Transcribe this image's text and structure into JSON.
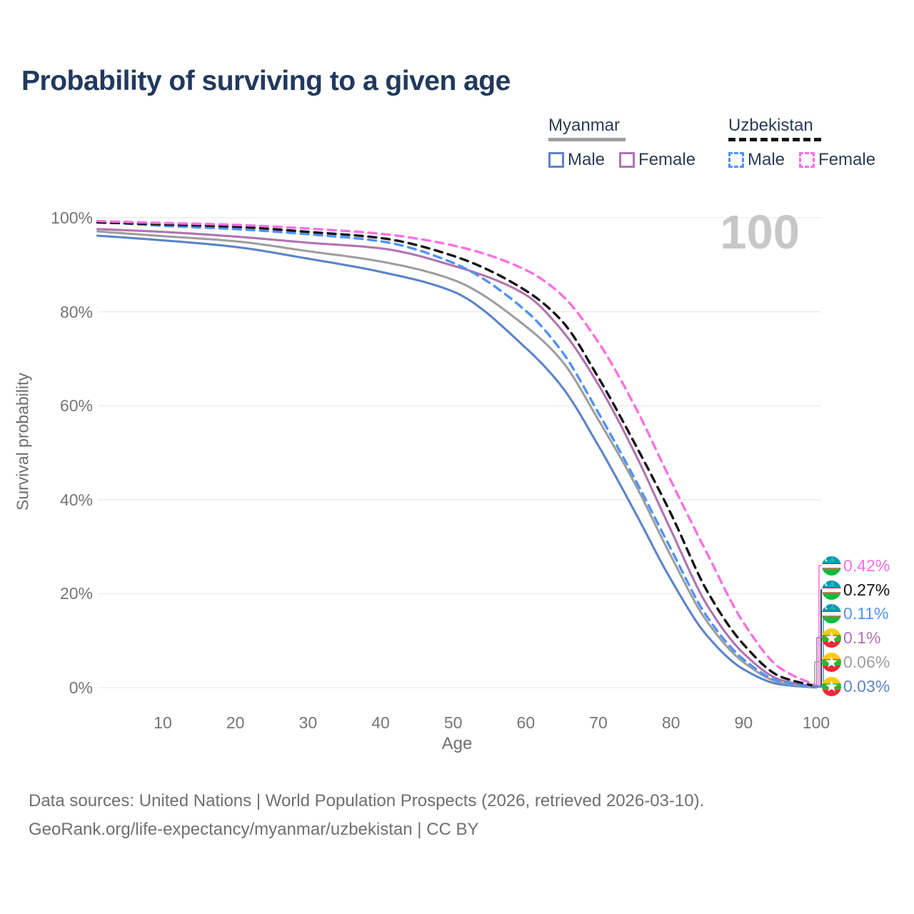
{
  "title": "Probability of surviving to a given age",
  "watermark": "100",
  "legend": {
    "groups": [
      {
        "title": "Myanmar",
        "style": "solid",
        "items": [
          {
            "label": "Male"
          },
          {
            "label": "Female"
          }
        ]
      },
      {
        "title": "Uzbekistan",
        "style": "dashed",
        "items": [
          {
            "label": "Male"
          },
          {
            "label": "Female"
          }
        ]
      }
    ]
  },
  "axes": {
    "y_title": "Survival probability",
    "x_title": "Age",
    "y_ticks": [
      "100%",
      "80%",
      "60%",
      "40%",
      "20%",
      "0%"
    ],
    "y_tick_values": [
      100,
      80,
      60,
      40,
      20,
      0
    ],
    "x_ticks": [
      "10",
      "20",
      "30",
      "40",
      "50",
      "60",
      "70",
      "80",
      "90",
      "100"
    ],
    "x_tick_values": [
      10,
      20,
      30,
      40,
      50,
      60,
      70,
      80,
      90,
      100
    ]
  },
  "end_labels": [
    {
      "value": "0.42%",
      "color": "#fb6fe4",
      "flag": "uzbekistan",
      "series": "Uzbekistan Female"
    },
    {
      "value": "0.27%",
      "color": "#141414",
      "flag": "uzbekistan",
      "series": "Uzbekistan"
    },
    {
      "value": "0.11%",
      "color": "#4f93f7",
      "flag": "uzbekistan",
      "series": "Uzbekistan Male"
    },
    {
      "value": "0.1%",
      "color": "#b173b1",
      "flag": "myanmar",
      "series": "Myanmar Female"
    },
    {
      "value": "0.06%",
      "color": "#9e9e9e",
      "flag": "myanmar",
      "series": "Myanmar"
    },
    {
      "value": "0.03%",
      "color": "#5b84c9",
      "flag": "myanmar",
      "series": "Myanmar Male"
    }
  ],
  "footer": {
    "line1": "Data sources: United Nations | World Population Prospects (2026, retrieved 2026-03-10).",
    "line2": "GeoRank.org/life-expectancy/myanmar/uzbekistan | CC BY"
  },
  "chart_data": {
    "type": "line",
    "title": "Probability of surviving to a given age",
    "xlabel": "Age",
    "ylabel": "Survival probability",
    "xlim": [
      1,
      100
    ],
    "ylim": [
      0,
      100
    ],
    "grid": "horizontal",
    "legend_position": "top-right",
    "x": [
      1,
      10,
      20,
      30,
      40,
      50,
      60,
      65,
      70,
      75,
      80,
      85,
      90,
      95,
      100
    ],
    "series": [
      {
        "name": "Uzbekistan Female",
        "color": "#fb6fe4",
        "dash": true,
        "values": [
          99.3,
          98.9,
          98.5,
          97.7,
          96.6,
          94.1,
          88.9,
          83.5,
          73.5,
          60.0,
          44.0,
          28.5,
          13.8,
          4.2,
          0.42
        ]
      },
      {
        "name": "Uzbekistan",
        "color": "#141414",
        "dash": true,
        "values": [
          99.0,
          98.6,
          98.1,
          97.0,
          95.7,
          91.9,
          84.5,
          78.0,
          66.0,
          52.0,
          37.0,
          20.5,
          9.2,
          2.4,
          0.27
        ]
      },
      {
        "name": "Uzbekistan Male",
        "color": "#4f93f7",
        "dash": true,
        "values": [
          99.2,
          98.3,
          97.6,
          96.5,
          95.0,
          90.4,
          80.2,
          71.5,
          58.5,
          44.5,
          29.5,
          15.0,
          6.0,
          1.3,
          0.11
        ]
      },
      {
        "name": "Myanmar Female",
        "color": "#b173b1",
        "dash": false,
        "values": [
          97.6,
          97.0,
          96.0,
          94.7,
          93.5,
          89.8,
          83.6,
          76.0,
          64.5,
          50.0,
          33.5,
          17.5,
          7.3,
          1.7,
          0.1
        ]
      },
      {
        "name": "Myanmar",
        "color": "#9e9e9e",
        "dash": false,
        "values": [
          97.1,
          96.1,
          95.0,
          92.9,
          90.7,
          86.8,
          76.9,
          69.5,
          57.0,
          43.5,
          28.0,
          14.0,
          5.4,
          1.1,
          0.06
        ]
      },
      {
        "name": "Myanmar Male",
        "color": "#5b84c9",
        "dash": false,
        "values": [
          96.2,
          95.2,
          93.8,
          91.3,
          88.5,
          84.3,
          72.3,
          64.0,
          51.5,
          37.5,
          23.0,
          11.0,
          3.9,
          0.7,
          0.03
        ]
      }
    ]
  }
}
